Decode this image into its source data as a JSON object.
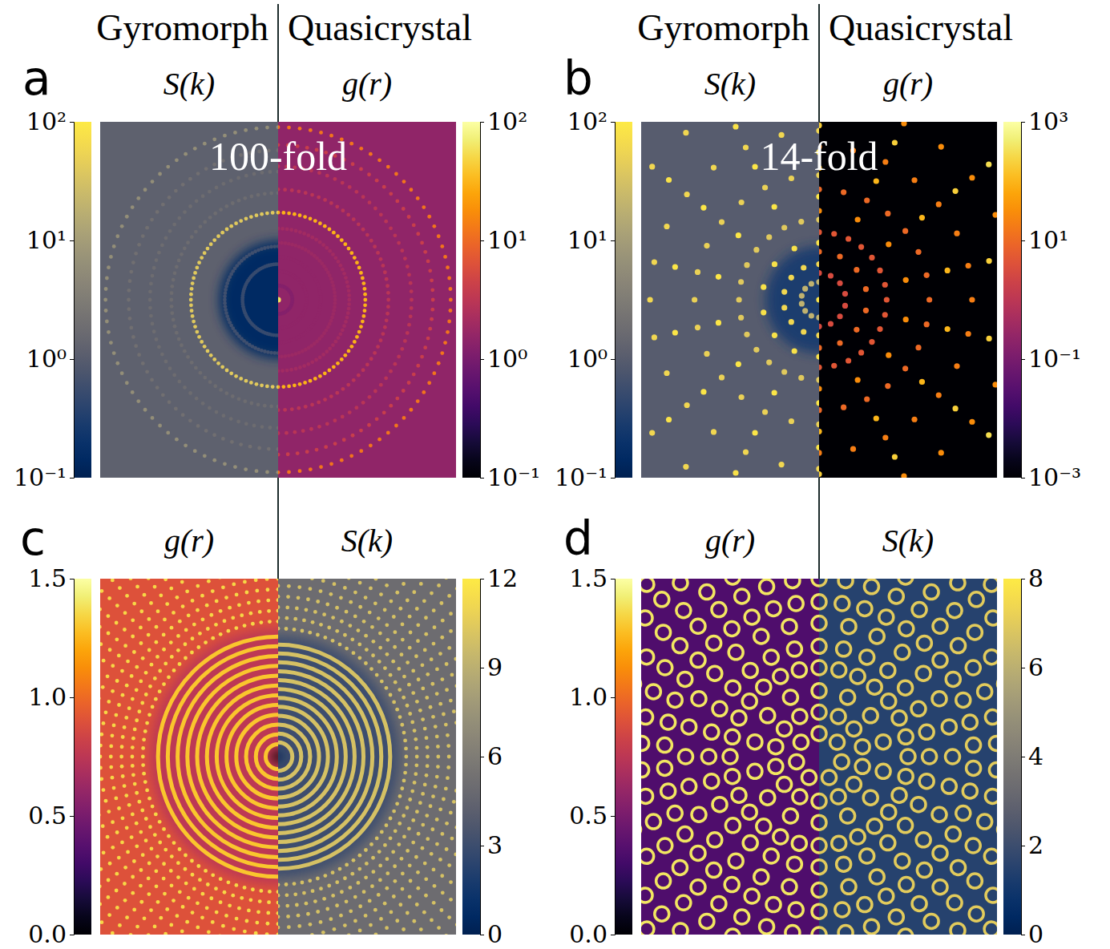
{
  "chart_data": [
    {
      "type": "heatmap",
      "panel": "a",
      "annotation": "100-fold",
      "halves": [
        {
          "group": "Gyromorph",
          "quantity": "S(k)",
          "color": "cividis",
          "log": true,
          "clim": [
            0.1,
            100
          ],
          "cticks": [
            {
              "value": 0.1,
              "label": "10⁻¹"
            },
            {
              "value": 1,
              "label": "10⁰"
            },
            {
              "value": 10,
              "label": "10¹"
            },
            {
              "value": 100,
              "label": "10²"
            }
          ],
          "background": 1.2,
          "disks": [
            {
              "radius": 0.33,
              "value": 0.15
            }
          ],
          "circles": [],
          "rings": [
            {
              "radius": 0.2,
              "count": 100,
              "value": 0.5
            },
            {
              "radius": 0.3,
              "count": 100,
              "value": 0.6
            },
            {
              "radius": 0.49,
              "count": 100,
              "value": 40
            },
            {
              "radius": 0.6,
              "count": 100,
              "value": 1.8
            },
            {
              "radius": 0.72,
              "count": 100,
              "value": 1.8
            },
            {
              "radius": 0.84,
              "count": 100,
              "value": 2
            },
            {
              "radius": 0.97,
              "count": 100,
              "value": 6
            }
          ]
        },
        {
          "group": "Quasicrystal",
          "quantity": "g(r)",
          "color": "inferno",
          "log": true,
          "clim": [
            0.1,
            100
          ],
          "cticks": [
            {
              "value": 0.1,
              "label": "10⁻¹"
            },
            {
              "value": 1,
              "label": "10⁰"
            },
            {
              "value": 10,
              "label": "10¹"
            },
            {
              "value": 100,
              "label": "10²"
            }
          ],
          "background": 1.5,
          "disks": [],
          "circles": [],
          "rings": [
            {
              "radius": 0,
              "count": 1,
              "value": 60
            },
            {
              "radius": 0.08,
              "count": 50,
              "value": 1.2
            },
            {
              "radius": 0.16,
              "count": 100,
              "value": 1.5
            },
            {
              "radius": 0.24,
              "count": 100,
              "value": 1.5
            },
            {
              "radius": 0.32,
              "count": 100,
              "value": 1.8
            },
            {
              "radius": 0.4,
              "count": 100,
              "value": 2
            },
            {
              "radius": 0.49,
              "count": 100,
              "value": 30
            },
            {
              "radius": 0.62,
              "count": 100,
              "value": 3
            },
            {
              "radius": 0.75,
              "count": 100,
              "value": 3
            },
            {
              "radius": 0.87,
              "count": 100,
              "value": 4
            },
            {
              "radius": 0.97,
              "count": 100,
              "value": 12
            }
          ]
        }
      ]
    },
    {
      "type": "heatmap",
      "panel": "b",
      "annotation": "14-fold",
      "halves": [
        {
          "group": "Gyromorph",
          "quantity": "S(k)",
          "color": "cividis",
          "log": true,
          "clim": [
            0.1,
            100
          ],
          "cticks": [
            {
              "value": 0.1,
              "label": "10⁻¹"
            },
            {
              "value": 1,
              "label": "10⁰"
            },
            {
              "value": 10,
              "label": "10¹"
            },
            {
              "value": 100,
              "label": "10²"
            }
          ],
          "background": 1.0,
          "disks": [
            {
              "radius": 0.3,
              "value": 0.3
            }
          ],
          "circles": [],
          "rings": [
            {
              "radius": 0,
              "count": 1,
              "value": 80
            },
            {
              "radius": 0.1,
              "count": 14,
              "value": 20
            },
            {
              "radius": 0.2,
              "count": 14,
              "value": 60
            },
            {
              "radius": 0.32,
              "count": 14,
              "value": 80
            },
            {
              "radius": 0.45,
              "count": 28,
              "value": 40
            },
            {
              "radius": 0.58,
              "count": 14,
              "value": 90
            },
            {
              "radius": 0.7,
              "count": 28,
              "value": 50
            },
            {
              "radius": 0.83,
              "count": 14,
              "value": 90
            },
            {
              "radius": 0.95,
              "count": 28,
              "value": 60
            },
            {
              "radius": 1.08,
              "count": 14,
              "value": 80
            },
            {
              "radius": 1.2,
              "count": 28,
              "value": 60
            },
            {
              "radius": 1.33,
              "count": 14,
              "value": 80
            }
          ]
        },
        {
          "group": "Quasicrystal",
          "quantity": "g(r)",
          "color": "inferno",
          "log": true,
          "clim": [
            0.001,
            1000
          ],
          "cticks": [
            {
              "value": 0.001,
              "label": "10⁻³"
            },
            {
              "value": 0.1,
              "label": "10⁻¹"
            },
            {
              "value": 10,
              "label": "10¹"
            },
            {
              "value": 1000,
              "label": "10³"
            }
          ],
          "background": 0.001,
          "disks": [],
          "circles": [],
          "rings": [
            {
              "radius": 0.15,
              "count": 14,
              "value": 3
            },
            {
              "radius": 0.27,
              "count": 14,
              "value": 10
            },
            {
              "radius": 0.38,
              "count": 28,
              "value": 5
            },
            {
              "radius": 0.5,
              "count": 14,
              "value": 30
            },
            {
              "radius": 0.62,
              "count": 28,
              "value": 10
            },
            {
              "radius": 0.74,
              "count": 14,
              "value": 100
            },
            {
              "radius": 0.86,
              "count": 28,
              "value": 20
            },
            {
              "radius": 0.98,
              "count": 14,
              "value": 200
            },
            {
              "radius": 1.1,
              "count": 28,
              "value": 30
            },
            {
              "radius": 1.22,
              "count": 14,
              "value": 300
            },
            {
              "radius": 1.35,
              "count": 28,
              "value": 50
            }
          ]
        }
      ]
    },
    {
      "type": "heatmap",
      "panel": "c",
      "halves": [
        {
          "quantity": "g(r)",
          "color": "inferno",
          "log": false,
          "clim": [
            0,
            1.5
          ],
          "cticks": [
            {
              "value": 0,
              "label": "0.0"
            },
            0.5,
            {
              "value": 1,
              "label": "1.0"
            },
            1.5
          ],
          "background": 0.9,
          "disks": [
            {
              "radius": 0.72,
              "value": 0.75
            },
            {
              "radius": 0.035,
              "value": 0
            }
          ],
          "circles": [
            {
              "radius": 0.07,
              "value": 1.3
            },
            {
              "radius": 0.125,
              "value": 1.3
            },
            {
              "radius": 0.18,
              "value": 1.3
            },
            {
              "radius": 0.235,
              "value": 1.3
            },
            {
              "radius": 0.29,
              "value": 1.3
            },
            {
              "radius": 0.345,
              "value": 1.3
            },
            {
              "radius": 0.4,
              "value": 1.3
            },
            {
              "radius": 0.455,
              "value": 1.3
            },
            {
              "radius": 0.51,
              "value": 1.3
            },
            {
              "radius": 0.565,
              "value": 1.3
            },
            {
              "radius": 0.62,
              "value": 1.3
            },
            {
              "radius": 0.675,
              "value": 1.3
            }
          ],
          "rings": [
            {
              "radius": 0.76,
              "count": 100,
              "value": 1.35
            },
            {
              "radius": 0.82,
              "count": 100,
              "value": 1.35
            },
            {
              "radius": 0.88,
              "count": 100,
              "value": 1.35
            },
            {
              "radius": 0.94,
              "count": 100,
              "value": 1.35
            },
            {
              "radius": 1.0,
              "count": 100,
              "value": 1.35
            },
            {
              "radius": 1.06,
              "count": 100,
              "value": 1.35
            },
            {
              "radius": 1.12,
              "count": 100,
              "value": 1.35
            },
            {
              "radius": 1.18,
              "count": 100,
              "value": 1.35
            },
            {
              "radius": 1.24,
              "count": 100,
              "value": 1.35
            },
            {
              "radius": 1.3,
              "count": 100,
              "value": 1.35
            },
            {
              "radius": 1.36,
              "count": 100,
              "value": 1.35
            },
            {
              "radius": 1.42,
              "count": 100,
              "value": 1.35
            }
          ]
        },
        {
          "quantity": "S(k)",
          "color": "cividis",
          "log": false,
          "clim": [
            0,
            12
          ],
          "cticks": [
            0,
            3,
            6,
            9,
            12
          ],
          "background": 5,
          "disks": [
            {
              "radius": 0.68,
              "value": 3
            },
            {
              "radius": 0.03,
              "value": 0
            }
          ],
          "circles": [
            {
              "radius": 0.08,
              "value": 10
            },
            {
              "radius": 0.13,
              "value": 10
            },
            {
              "radius": 0.18,
              "value": 10
            },
            {
              "radius": 0.23,
              "value": 10
            },
            {
              "radius": 0.28,
              "value": 10
            },
            {
              "radius": 0.33,
              "value": 10
            },
            {
              "radius": 0.38,
              "value": 10
            },
            {
              "radius": 0.43,
              "value": 10
            },
            {
              "radius": 0.48,
              "value": 10
            },
            {
              "radius": 0.53,
              "value": 10
            },
            {
              "radius": 0.58,
              "value": 10
            },
            {
              "radius": 0.63,
              "value": 10
            }
          ],
          "rings": [
            {
              "radius": 0.72,
              "count": 100,
              "value": 10
            },
            {
              "radius": 0.78,
              "count": 100,
              "value": 10
            },
            {
              "radius": 0.84,
              "count": 100,
              "value": 10
            },
            {
              "radius": 0.9,
              "count": 100,
              "value": 10
            },
            {
              "radius": 0.96,
              "count": 100,
              "value": 10
            },
            {
              "radius": 1.02,
              "count": 100,
              "value": 10
            },
            {
              "radius": 1.08,
              "count": 100,
              "value": 10
            },
            {
              "radius": 1.14,
              "count": 100,
              "value": 10
            },
            {
              "radius": 1.2,
              "count": 100,
              "value": 10
            },
            {
              "radius": 1.26,
              "count": 100,
              "value": 10
            },
            {
              "radius": 1.32,
              "count": 100,
              "value": 10
            },
            {
              "radius": 1.38,
              "count": 100,
              "value": 10
            }
          ]
        }
      ]
    },
    {
      "type": "heatmap",
      "panel": "d",
      "halves": [
        {
          "quantity": "g(r)",
          "color": "inferno",
          "log": false,
          "clim": [
            0,
            1.5
          ],
          "cticks": [
            {
              "value": 0,
              "label": "0.0"
            },
            0.5,
            {
              "value": 1,
              "label": "1.0"
            },
            1.5
          ],
          "background": 0.35,
          "disks": [],
          "circles": [],
          "rings": [
            {
              "radius": 0.13,
              "count": 7,
              "value": 1.4,
              "marker": "ring"
            },
            {
              "radius": 0.25,
              "count": 14,
              "value": 1.4,
              "marker": "ring"
            },
            {
              "radius": 0.37,
              "count": 14,
              "value": 1.4,
              "marker": "ring"
            },
            {
              "radius": 0.5,
              "count": 28,
              "value": 1.4,
              "marker": "ring"
            },
            {
              "radius": 0.62,
              "count": 28,
              "value": 1.4,
              "marker": "ring"
            },
            {
              "radius": 0.75,
              "count": 28,
              "value": 1.4,
              "marker": "ring"
            },
            {
              "radius": 0.87,
              "count": 42,
              "value": 1.4,
              "marker": "ring"
            },
            {
              "radius": 1.0,
              "count": 42,
              "value": 1.4,
              "marker": "ring"
            },
            {
              "radius": 1.12,
              "count": 42,
              "value": 1.4,
              "marker": "ring"
            },
            {
              "radius": 1.25,
              "count": 56,
              "value": 1.4,
              "marker": "ring"
            },
            {
              "radius": 1.37,
              "count": 56,
              "value": 1.4,
              "marker": "ring"
            }
          ]
        },
        {
          "quantity": "S(k)",
          "color": "cividis",
          "log": false,
          "clim": [
            0,
            8
          ],
          "cticks": [
            0,
            2,
            4,
            6,
            8
          ],
          "background": 1.5,
          "disks": [],
          "circles": [],
          "rings": [
            {
              "radius": 0.13,
              "count": 7,
              "value": 7,
              "marker": "ring"
            },
            {
              "radius": 0.25,
              "count": 14,
              "value": 7,
              "marker": "ring"
            },
            {
              "radius": 0.37,
              "count": 14,
              "value": 7,
              "marker": "ring"
            },
            {
              "radius": 0.5,
              "count": 28,
              "value": 7,
              "marker": "ring"
            },
            {
              "radius": 0.62,
              "count": 28,
              "value": 7,
              "marker": "ring"
            },
            {
              "radius": 0.75,
              "count": 28,
              "value": 7,
              "marker": "ring"
            },
            {
              "radius": 0.87,
              "count": 42,
              "value": 7,
              "marker": "ring"
            },
            {
              "radius": 1.0,
              "count": 42,
              "value": 7,
              "marker": "ring"
            },
            {
              "radius": 1.12,
              "count": 42,
              "value": 7,
              "marker": "ring"
            },
            {
              "radius": 1.25,
              "count": 56,
              "value": 7,
              "marker": "ring"
            },
            {
              "radius": 1.37,
              "count": 56,
              "value": 7,
              "marker": "ring"
            }
          ]
        }
      ]
    }
  ]
}
